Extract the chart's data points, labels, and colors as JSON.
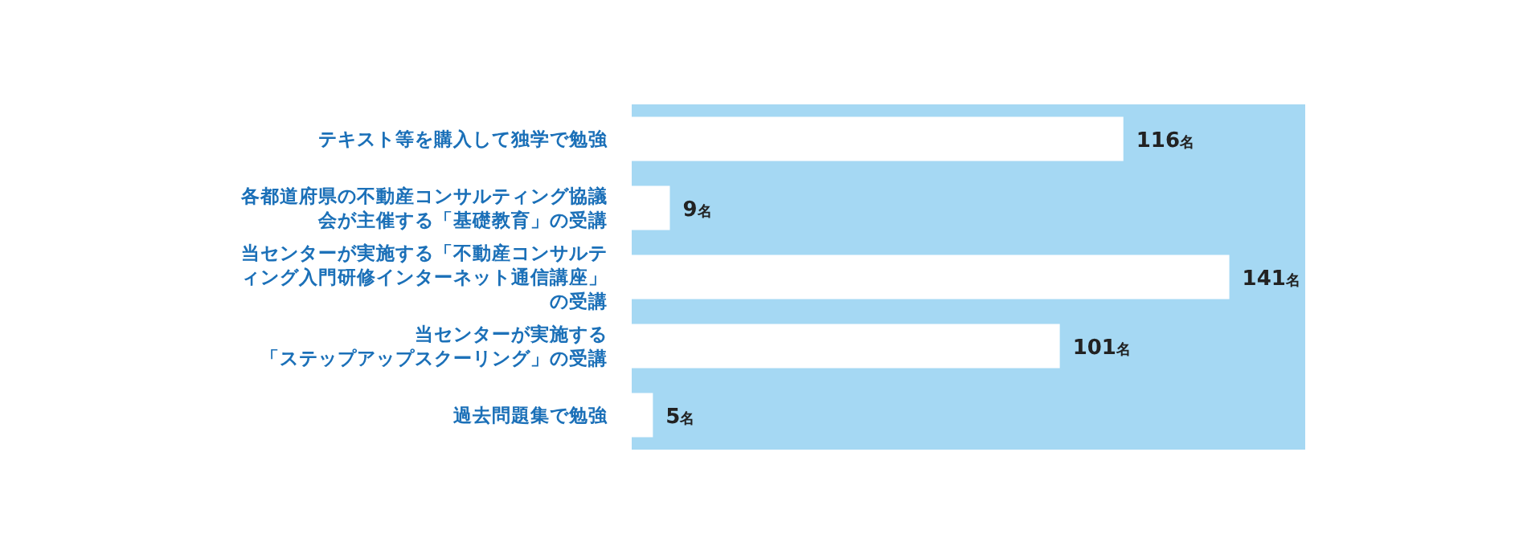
{
  "chart_data": {
    "type": "bar",
    "orientation": "horizontal",
    "relative": false,
    "categories": [
      "テキスト等を購入して独学で勉強",
      "各都道府県の不動産コンサルティング協議会が主催する「基礎教育」の受講",
      "当センターが実施する「不動産コンサルティング入門研修インターネット通信講座」の受講",
      "当センターが実施する「ステップアップスクーリング」の受講",
      "過去問題集で勉強"
    ],
    "values": [
      116,
      9,
      141,
      101,
      5
    ],
    "color": "#ffffff",
    "value_labels": [
      "116名",
      "9名",
      "141名",
      "101名",
      "5名"
    ]
  }
}
